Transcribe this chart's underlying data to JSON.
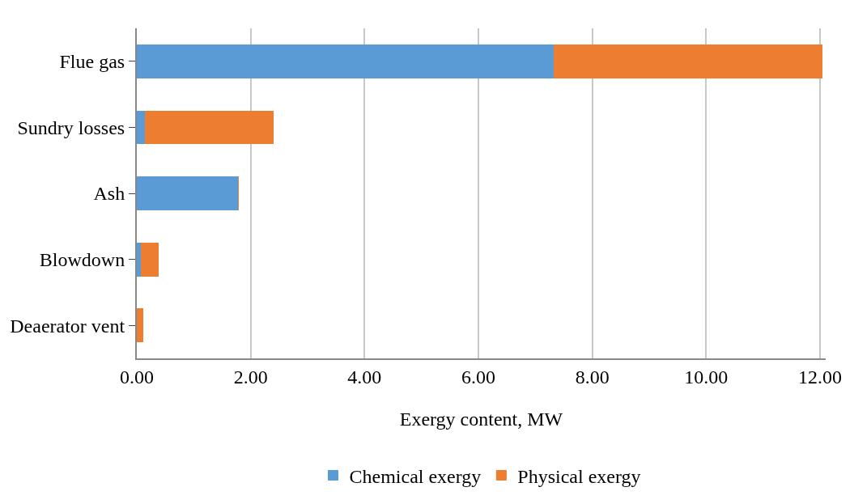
{
  "chart_data": {
    "type": "bar",
    "orientation": "horizontal",
    "stacked": true,
    "xlabel": "Exergy content, MW",
    "categories": [
      "Flue gas",
      "Sundry losses",
      "Ash",
      "Blowdown",
      "Deaerator vent"
    ],
    "series": [
      {
        "name": "Chemical exergy",
        "color": "#5b9bd5",
        "values": [
          7.33,
          0.15,
          1.78,
          0.08,
          0
        ]
      },
      {
        "name": "Physical exergy",
        "color": "#ed7d31",
        "values": [
          4.7,
          2.24,
          0,
          0.3,
          0.1
        ]
      }
    ],
    "xlim": [
      0,
      12.1
    ],
    "xticks": [
      {
        "value": 0,
        "label": "0.00"
      },
      {
        "value": 2,
        "label": "2.00"
      },
      {
        "value": 4,
        "label": "4.00"
      },
      {
        "value": 6,
        "label": "6.00"
      },
      {
        "value": 8,
        "label": "8.00"
      },
      {
        "value": 10,
        "label": "10.00"
      },
      {
        "value": 12,
        "label": "12.00"
      }
    ],
    "grid": "x",
    "legend": "bottom"
  }
}
